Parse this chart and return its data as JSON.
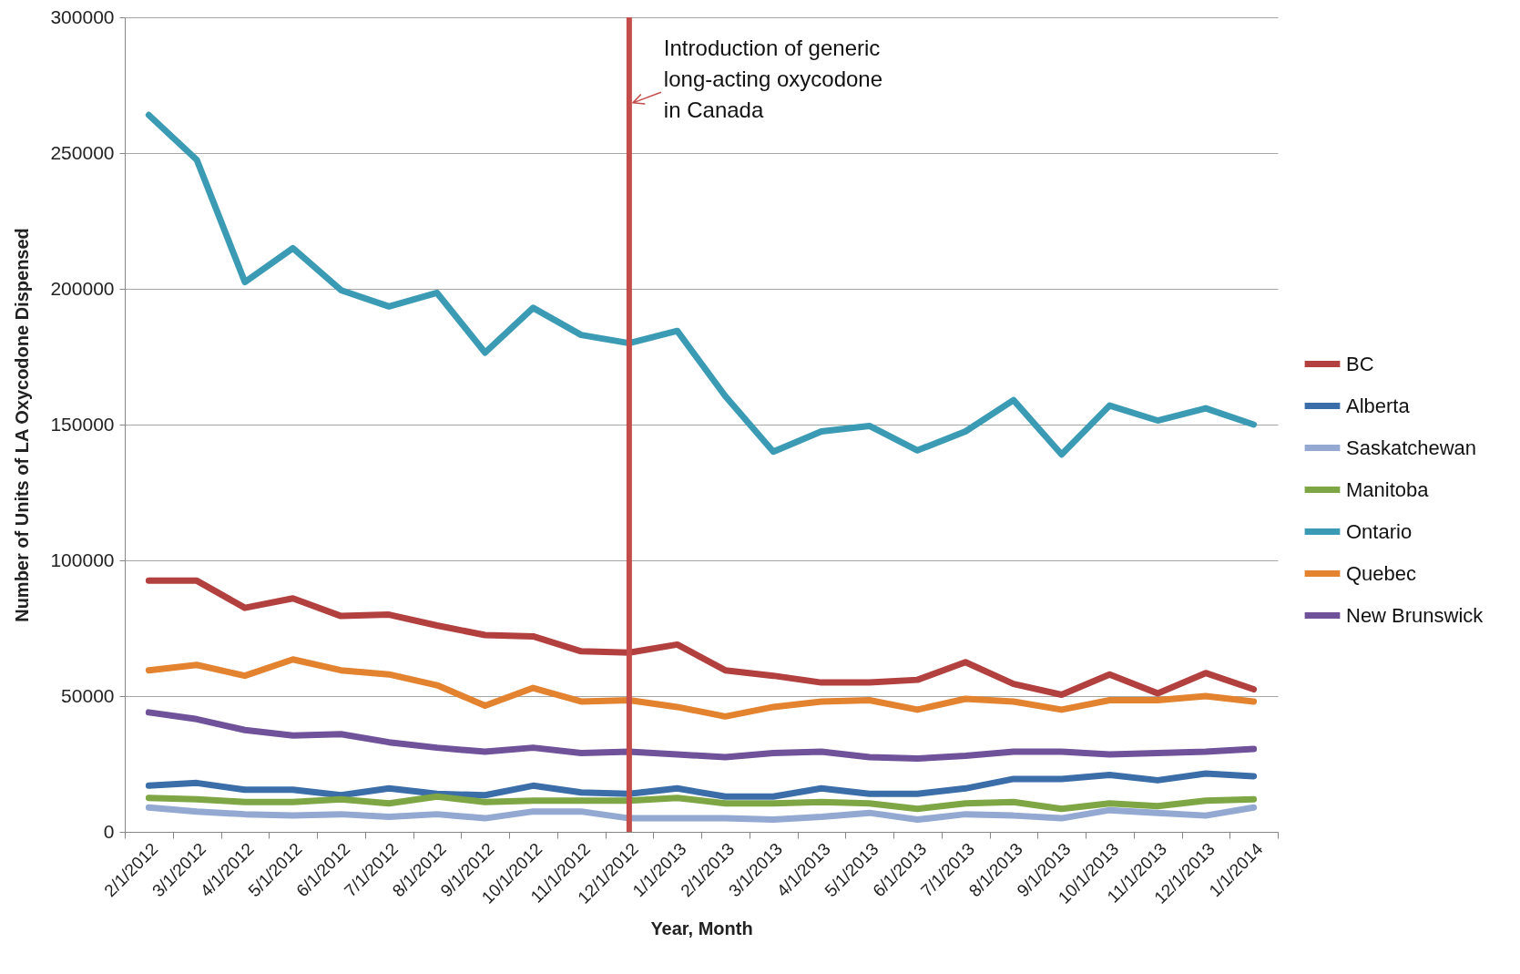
{
  "chart_data": {
    "type": "line",
    "xlabel": "Year, Month",
    "ylabel": "Number of Units of LA Oxycodone Dispensed",
    "categories": [
      "2/1/2012",
      "3/1/2012",
      "4/1/2012",
      "5/1/2012",
      "6/1/2012",
      "7/1/2012",
      "8/1/2012",
      "9/1/2012",
      "10/1/2012",
      "11/1/2012",
      "12/1/2012",
      "1/1/2013",
      "2/1/2013",
      "3/1/2013",
      "4/1/2013",
      "5/1/2013",
      "6/1/2013",
      "7/1/2013",
      "8/1/2013",
      "9/1/2013",
      "10/1/2013",
      "11/1/2013",
      "12/1/2013",
      "1/1/2014"
    ],
    "series": [
      {
        "name": "BC",
        "color": "#b2403e",
        "values": [
          92500,
          92500,
          82500,
          86000,
          79500,
          80000,
          76000,
          72500,
          72000,
          66500,
          66000,
          69000,
          59500,
          57500,
          55000,
          55000,
          56000,
          62500,
          54500,
          50500,
          58000,
          51000,
          58500,
          52500
        ]
      },
      {
        "name": "Alberta",
        "color": "#3b6ea8",
        "values": [
          17000,
          18000,
          15500,
          15500,
          13500,
          16000,
          14000,
          13500,
          17000,
          14500,
          14000,
          16000,
          13000,
          13000,
          16000,
          14000,
          14000,
          16000,
          19500,
          19500,
          21000,
          19000,
          21500,
          20500
        ]
      },
      {
        "name": "Saskatchewan",
        "color": "#93a9d2",
        "values": [
          9000,
          7500,
          6500,
          6000,
          6500,
          5500,
          6500,
          5000,
          7500,
          7500,
          5000,
          5000,
          5000,
          4500,
          5500,
          7000,
          4500,
          6500,
          6000,
          5000,
          8000,
          7000,
          6000,
          9000
        ]
      },
      {
        "name": "Manitoba",
        "color": "#7ea645",
        "values": [
          12500,
          12000,
          11000,
          11000,
          12000,
          10500,
          13000,
          11000,
          11500,
          11500,
          11500,
          12500,
          10500,
          10500,
          11000,
          10500,
          8500,
          10500,
          11000,
          8500,
          10500,
          9500,
          11500,
          12000
        ]
      },
      {
        "name": "Ontario",
        "color": "#3b9bb5",
        "values": [
          264000,
          247500,
          202500,
          215000,
          199500,
          193500,
          198500,
          176500,
          193000,
          183000,
          180000,
          184500,
          160500,
          140000,
          147500,
          149500,
          140500,
          147500,
          159000,
          139000,
          157000,
          151500,
          156000,
          150000
        ]
      },
      {
        "name": "Quebec",
        "color": "#e3822f",
        "values": [
          59500,
          61500,
          57500,
          63500,
          59500,
          58000,
          54000,
          46500,
          53000,
          48000,
          48500,
          46000,
          42500,
          46000,
          48000,
          48500,
          45000,
          49000,
          48000,
          45000,
          48500,
          48500,
          50000,
          48000
        ]
      },
      {
        "name": "New Brunswick",
        "color": "#6f529a",
        "values": [
          44000,
          41500,
          37500,
          35500,
          36000,
          33000,
          31000,
          29500,
          31000,
          29000,
          29500,
          28500,
          27500,
          29000,
          29500,
          27500,
          27000,
          28000,
          29500,
          29500,
          28500,
          29000,
          29500,
          30500
        ]
      }
    ],
    "ylim": [
      0,
      300000
    ],
    "yticks": [
      0,
      50000,
      100000,
      150000,
      200000,
      250000,
      300000
    ],
    "grid": "y",
    "legend": "right",
    "ref_lines": [
      {
        "axis": "x",
        "value": "12/1/2012",
        "label": "Introduction of generic long-acting oxycodone in Canada",
        "color": "#c44d4b"
      }
    ]
  }
}
